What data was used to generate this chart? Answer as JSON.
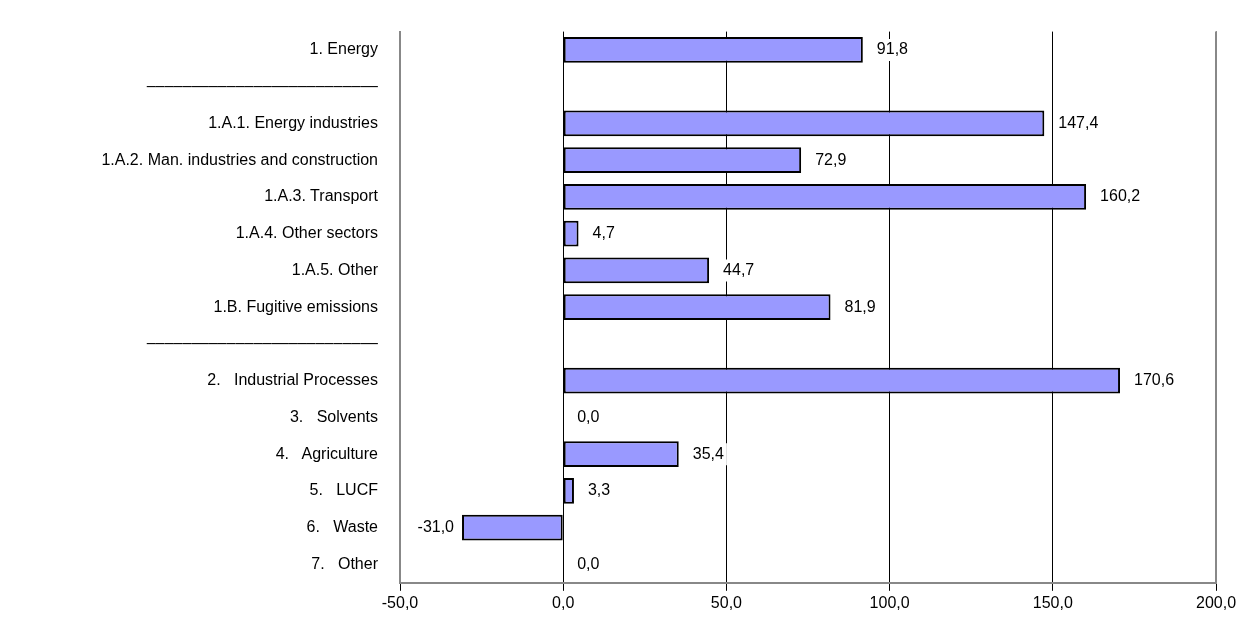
{
  "chart_data": {
    "type": "bar",
    "orientation": "horizontal",
    "categories": [
      "1. Energy",
      "––––––––––––––––––––––––––",
      "1.A.1. Energy industries",
      "1.A.2. Man. industries and construction",
      "1.A.3. Transport",
      "1.A.4. Other sectors",
      "1.A.5. Other",
      "1.B. Fugitive emissions",
      "––––––––––––––––––––––––––",
      "2.   Industrial Processes",
      "3.   Solvents",
      "4.   Agriculture",
      "5.   LUCF",
      "6.   Waste",
      "7.   Other"
    ],
    "values": [
      91.8,
      null,
      147.4,
      72.9,
      160.2,
      4.7,
      44.7,
      81.9,
      null,
      170.6,
      0.0,
      35.4,
      3.3,
      -31.0,
      0.0
    ],
    "value_labels": [
      "91,8",
      null,
      "147,4",
      "72,9",
      "160,2",
      "4,7",
      "44,7",
      "81,9",
      null,
      "170,6",
      "0,0",
      "35,4",
      "3,3",
      "-31,0",
      "0,0"
    ],
    "color": "#9999ff",
    "xlim": [
      -50,
      200
    ],
    "xticks": [
      {
        "value": -50,
        "label": "-50,0"
      },
      {
        "value": 0,
        "label": "0,0"
      },
      {
        "value": 50,
        "label": "50,0"
      },
      {
        "value": 100,
        "label": "100,0"
      },
      {
        "value": 150,
        "label": "150,0"
      },
      {
        "value": 200,
        "label": "200,0"
      }
    ],
    "grid": "x",
    "legend": false
  }
}
